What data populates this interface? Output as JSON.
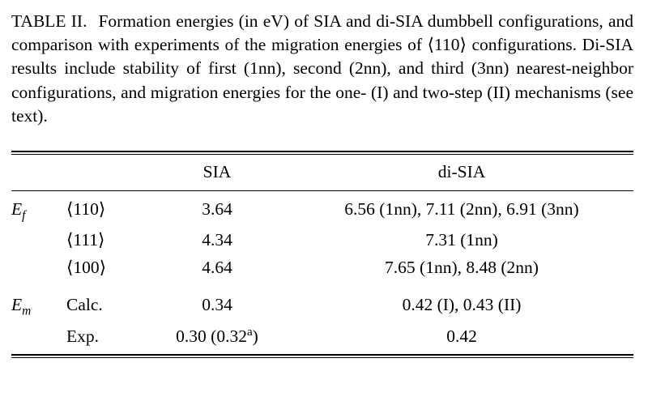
{
  "caption": {
    "label": "TABLE II.",
    "text": "Formation energies (in eV) of SIA and di-SIA dumbbell configurations, and comparison with experiments of the migration energies of ⟨110⟩ configurations. Di-SIA results include stability of first (1nn), second (2nn), and third (3nn) nearest-neighbor configurations, and migration energies for the one- (I) and two-step (II) mechanisms (see text)."
  },
  "table": {
    "headers": {
      "sia": "SIA",
      "disia": "di-SIA"
    },
    "groups": [
      {
        "label_main": "E",
        "label_sub": "f",
        "rows": [
          {
            "config": "⟨110⟩",
            "sia": "3.64",
            "disia": "6.56 (1nn), 7.11 (2nn), 6.91 (3nn)"
          },
          {
            "config": "⟨111⟩",
            "sia": "4.34",
            "disia": "7.31 (1nn)"
          },
          {
            "config": "⟨100⟩",
            "sia": "4.64",
            "disia": "7.65 (1nn), 8.48 (2nn)"
          }
        ]
      },
      {
        "label_main": "E",
        "label_sub": "m",
        "rows": [
          {
            "config": "Calc.",
            "sia": "0.34",
            "disia": "0.42 (I), 0.43 (II)"
          },
          {
            "config": "Exp.",
            "sia_pre": "0.30 (0.32",
            "sia_sup": "a",
            "sia_post": ")",
            "disia": "0.42"
          }
        ]
      }
    ]
  },
  "colors": {
    "text": "#000000",
    "background": "#ffffff",
    "rule": "#000000"
  }
}
